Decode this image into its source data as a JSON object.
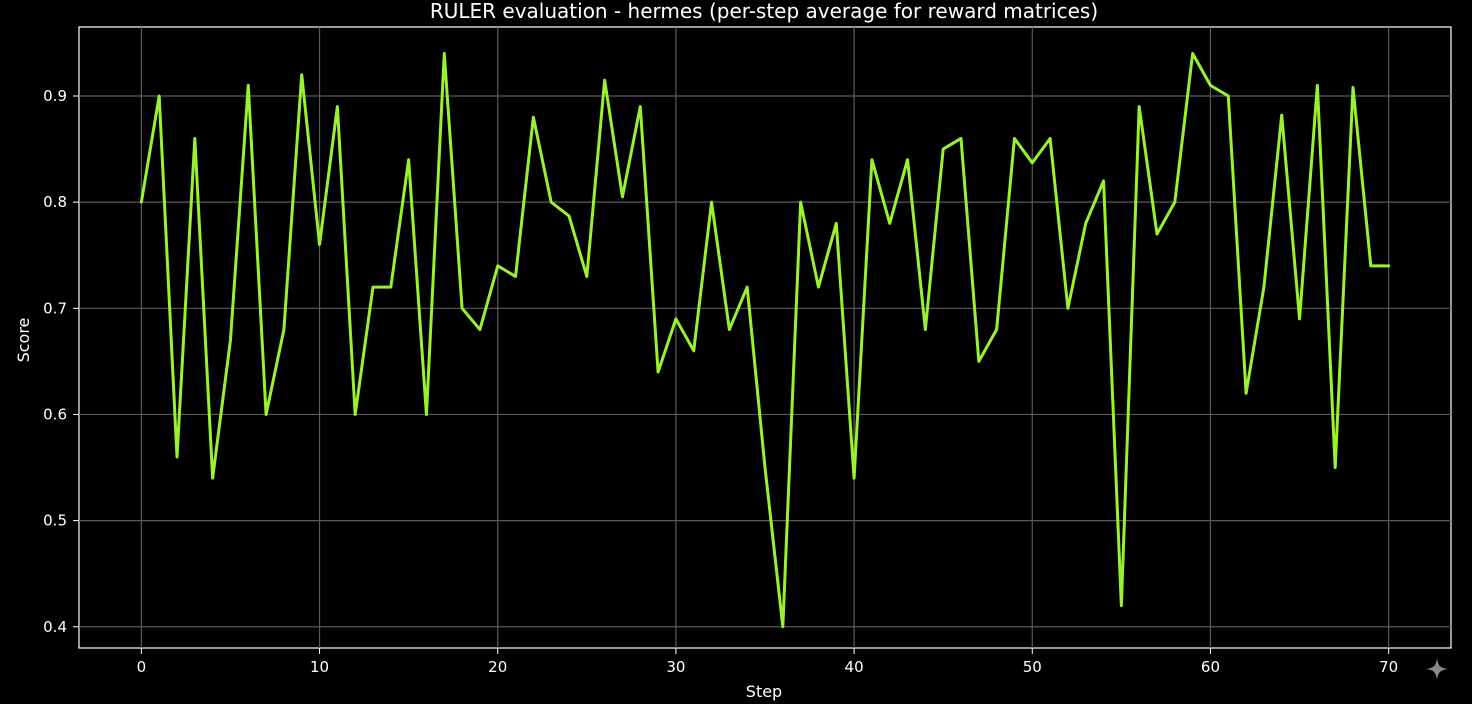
{
  "chart_data": {
    "type": "line",
    "title": "RULER evaluation - hermes (per-step average for reward matrices)",
    "xlabel": "Step",
    "ylabel": "Score",
    "xlim": [
      -3.5,
      73.5
    ],
    "ylim": [
      0.38,
      0.965
    ],
    "x_ticks": [
      0,
      10,
      20,
      30,
      40,
      50,
      60,
      70
    ],
    "y_ticks": [
      0.4,
      0.5,
      0.6,
      0.7,
      0.8,
      0.9
    ],
    "grid": true,
    "background": "#000000",
    "series": [
      {
        "color": "#9af22e",
        "x": [
          0,
          1,
          2,
          3,
          4,
          5,
          6,
          7,
          8,
          9,
          10,
          11,
          12,
          13,
          14,
          15,
          16,
          17,
          18,
          19,
          20,
          21,
          22,
          23,
          24,
          25,
          26,
          27,
          28,
          29,
          30,
          31,
          32,
          33,
          34,
          35,
          36,
          37,
          38,
          39,
          40,
          41,
          42,
          43,
          44,
          45,
          46,
          47,
          48,
          49,
          50,
          51,
          52,
          53,
          54,
          55,
          56,
          57,
          58,
          59,
          60,
          61,
          62,
          63,
          64,
          65,
          66,
          67,
          68,
          69,
          70
        ],
        "values": [
          0.8,
          0.9,
          0.56,
          0.86,
          0.54,
          0.67,
          0.91,
          0.6,
          0.68,
          0.92,
          0.76,
          0.89,
          0.6,
          0.72,
          0.72,
          0.84,
          0.6,
          0.94,
          0.7,
          0.68,
          0.74,
          0.73,
          0.88,
          0.8,
          0.787,
          0.73,
          0.915,
          0.805,
          0.89,
          0.64,
          0.69,
          0.66,
          0.8,
          0.68,
          0.72,
          0.55,
          0.4,
          0.8,
          0.72,
          0.78,
          0.54,
          0.84,
          0.78,
          0.84,
          0.68,
          0.85,
          0.86,
          0.65,
          0.68,
          0.86,
          0.837,
          0.86,
          0.7,
          0.78,
          0.82,
          0.42,
          0.89,
          0.77,
          0.8,
          0.94,
          0.91,
          0.9,
          0.62,
          0.72,
          0.882,
          0.69,
          0.91,
          0.55,
          0.908,
          0.74,
          0.74
        ]
      }
    ]
  }
}
